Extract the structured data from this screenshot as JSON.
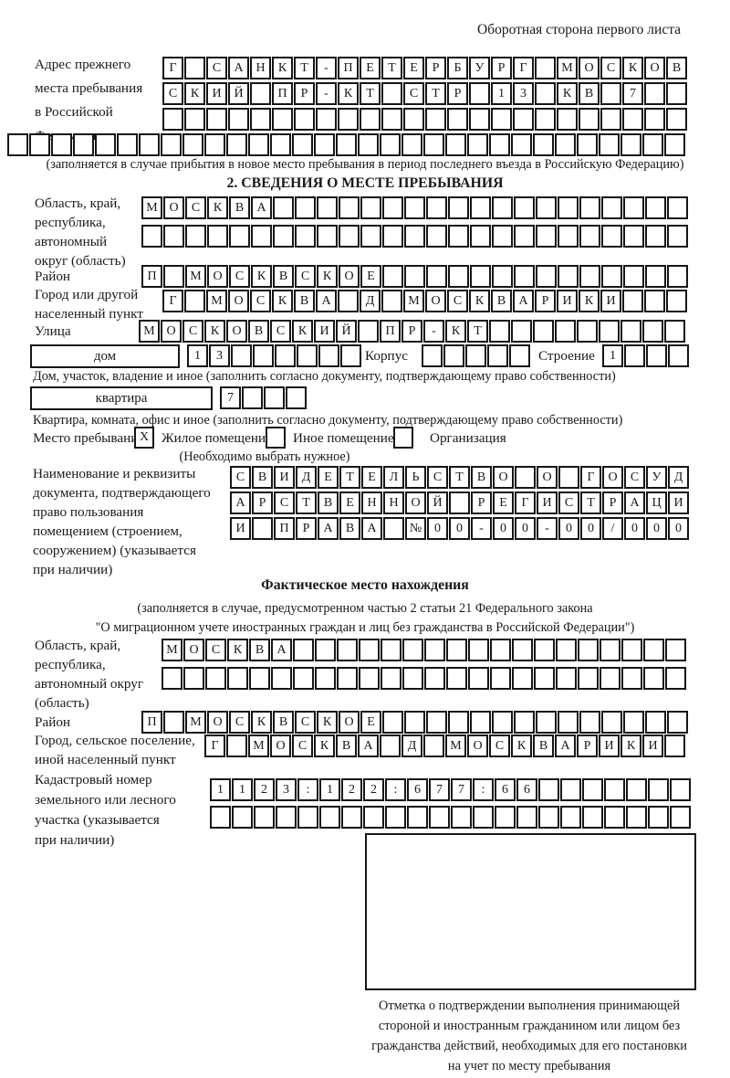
{
  "empty": "",
  "header": "Оборотная сторона первого листа",
  "section1": {
    "label": "Адрес прежнего\nместа пребывания\nв Российской\nФедерации",
    "rows": [
      "Г САНКТ-ПЕТЕРБУРГ МОСКОВ",
      "СКИЙ ПР-КТ СТР 13 КВ 7",
      "",
      ""
    ],
    "caption": "(заполняется в случае прибытия в новое место пребывания в период последнего въезда в Российскую Федерацию)"
  },
  "section2": {
    "title": "2. СВЕДЕНИЯ О МЕСТЕ ПРЕБЫВАНИЯ",
    "region_label": "Область, край,\nреспублика,\nавтономный\nокруг (область)",
    "region_value": "МОСКВА",
    "district_label": "Район",
    "district_value": "П МОСКВСКОЕ",
    "city_label": "Город или другой\nнаселенный пункт",
    "city_value": "Г МОСКВА Д МОСКВАРИКИ",
    "street_label": "Улица",
    "street_value": "МОСКОВСКИЙ ПР-КТ",
    "house_box_label": "дом",
    "house_value": "13",
    "korpus_label": "Корпус",
    "stroenie_label": "Строение",
    "stroenie_value": "1",
    "house_caption": "Дом, участок, владение и иное (заполнить согласно документу, подтверждающему право собственности)",
    "flat_box_label": "квартира",
    "flat_value": "7",
    "flat_caption": "Квартира, комната, офис и иное (заполнить согласно документу, подтверждающему право собственности)",
    "stay_label": "Место пребывания:",
    "stay_checked": "X",
    "stay_option1": "Жилое помещение",
    "stay_option2": "Иное помещение",
    "stay_option3": "Организация",
    "stay_caption": "(Необходимо выбрать нужное)",
    "doc_label": "Наименование и реквизиты\nдокумента, подтверждающего\nправо пользования\nпомещением (строением,\nсооружением) (указывается\nпри наличии)",
    "doc_rows": [
      "СВИДЕТЕЛЬСТВО О ГОСУД",
      "АРСТВЕННОЙ РЕГИСТРАЦИ",
      "И ПРАВА №00-00-00/000"
    ]
  },
  "section3": {
    "title": "Фактическое место нахождения",
    "caption": "(заполняется в случае, предусмотренном частью 2 статьи 21 Федерального закона\n\"О миграционном учете иностранных граждан и лиц без гражданства в Российской Федерации\")",
    "region_label": "Область, край,\nреспублика,\nавтономный округ\n(область)",
    "region_value": "МОСКВА",
    "district_label": "Район",
    "district_value": "П МОСКВСКОЕ",
    "city_label": "Город, сельское поселение,\nиной населенный пункт",
    "city_value": "Г МОСКВА Д МОСКВАРИКИ",
    "cadastre_label": "Кадастровый номер\nземельного или лесного\nучастка (указывается\nпри наличии)",
    "cadastre_value": "1123:122:677:66",
    "mark_caption": "Отметка о подтверждении выполнения принимающей\nстороной и иностранным гражданином или лицом без\nгражданства действий, необходимых для его постановки\nна учет по месту пребывания"
  }
}
